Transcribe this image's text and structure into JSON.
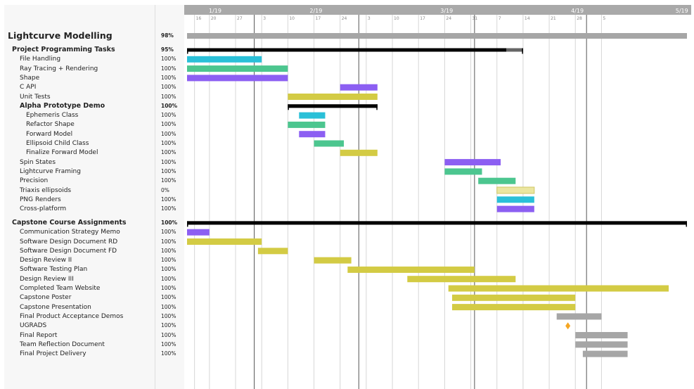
{
  "chart_data": {
    "type": "gantt",
    "timeline": {
      "start": "2019-01-14",
      "end": "2019-05-30",
      "month_labels": [
        {
          "label": "1/19",
          "date": "2019-01-14"
        },
        {
          "label": "2/19",
          "date": "2019-02-10"
        },
        {
          "label": "3/19",
          "date": "2019-03-17"
        },
        {
          "label": "4/19",
          "date": "2019-04-21"
        },
        {
          "label": "5/19",
          "date": "2019-05-19"
        }
      ],
      "day_ticks": [
        {
          "label": "16",
          "date": "2019-01-16"
        },
        {
          "label": "20",
          "date": "2019-01-20"
        },
        {
          "label": "27",
          "date": "2019-01-27"
        },
        {
          "label": "3",
          "date": "2019-02-03"
        },
        {
          "label": "10",
          "date": "2019-02-10"
        },
        {
          "label": "17",
          "date": "2019-02-17"
        },
        {
          "label": "24",
          "date": "2019-02-24"
        },
        {
          "label": "3",
          "date": "2019-03-03"
        },
        {
          "label": "10",
          "date": "2019-03-10"
        },
        {
          "label": "17",
          "date": "2019-03-17"
        },
        {
          "label": "24",
          "date": "2019-03-24"
        },
        {
          "label": "31",
          "date": "2019-03-31"
        },
        {
          "label": "7",
          "date": "2019-04-07"
        },
        {
          "label": "14",
          "date": "2019-04-14"
        },
        {
          "label": "21",
          "date": "2019-04-21"
        },
        {
          "label": "28",
          "date": "2019-04-28"
        },
        {
          "label": "5",
          "date": "2019-05-05"
        }
      ],
      "major_lines": [
        "2019-02-01",
        "2019-03-01",
        "2019-04-01",
        "2019-05-01"
      ]
    },
    "tasks": [
      {
        "name": "Lightcurve Modelling",
        "pct": "98%",
        "level": 0,
        "kind": "project",
        "start": "2019-01-14",
        "end": "2019-05-30",
        "color": "#a6a6a6"
      },
      {
        "name": "Project Programming Tasks",
        "pct": "95%",
        "level": 1,
        "kind": "group",
        "start": "2019-01-14",
        "end": "2019-04-14",
        "progress": 0.95
      },
      {
        "name": "File Handling",
        "pct": "100%",
        "level": 2,
        "kind": "task",
        "start": "2019-01-14",
        "end": "2019-02-03",
        "color": "#2ac0d8"
      },
      {
        "name": "Ray Tracing + Rendering",
        "pct": "100%",
        "level": 2,
        "kind": "task",
        "start": "2019-01-14",
        "end": "2019-02-10",
        "color": "#4cc68f"
      },
      {
        "name": "Shape",
        "pct": "100%",
        "level": 2,
        "kind": "task",
        "start": "2019-01-14",
        "end": "2019-02-10",
        "color": "#8c5ff2"
      },
      {
        "name": "C API",
        "pct": "100%",
        "level": 2,
        "kind": "task",
        "start": "2019-02-24",
        "end": "2019-03-06",
        "color": "#8c5ff2"
      },
      {
        "name": "Unit Tests",
        "pct": "100%",
        "level": 2,
        "kind": "task",
        "start": "2019-02-10",
        "end": "2019-03-06",
        "color": "#d3cb44"
      },
      {
        "name": "Alpha Prototype Demo",
        "pct": "100%",
        "level": 2,
        "kind": "group",
        "start": "2019-02-10",
        "end": "2019-03-06",
        "progress": 1
      },
      {
        "name": "Ephemeris Class",
        "pct": "100%",
        "level": 3,
        "kind": "task",
        "start": "2019-02-13",
        "end": "2019-02-20",
        "color": "#2ac0d8"
      },
      {
        "name": "Refactor Shape",
        "pct": "100%",
        "level": 3,
        "kind": "task",
        "start": "2019-02-10",
        "end": "2019-02-20",
        "color": "#4cc68f"
      },
      {
        "name": "Forward Model",
        "pct": "100%",
        "level": 3,
        "kind": "task",
        "start": "2019-02-13",
        "end": "2019-02-20",
        "color": "#8c5ff2"
      },
      {
        "name": "Ellipsoid Child Class",
        "pct": "100%",
        "level": 3,
        "kind": "task",
        "start": "2019-02-17",
        "end": "2019-02-25",
        "color": "#4cc68f"
      },
      {
        "name": "Finalize Forward Model",
        "pct": "100%",
        "level": 3,
        "kind": "task",
        "start": "2019-02-24",
        "end": "2019-03-06",
        "color": "#d3cb44"
      },
      {
        "name": "Spin States",
        "pct": "100%",
        "level": 2,
        "kind": "task",
        "start": "2019-03-24",
        "end": "2019-04-08",
        "color": "#8c5ff2"
      },
      {
        "name": "Lightcurve Framing",
        "pct": "100%",
        "level": 2,
        "kind": "task",
        "start": "2019-03-24",
        "end": "2019-04-03",
        "color": "#4cc68f"
      },
      {
        "name": "Precision",
        "pct": "100%",
        "level": 2,
        "kind": "task",
        "start": "2019-04-02",
        "end": "2019-04-12",
        "color": "#4cc68f"
      },
      {
        "name": "Triaxis ellipsoids",
        "pct": "0%",
        "level": 2,
        "kind": "task",
        "start": "2019-04-07",
        "end": "2019-04-17",
        "color": "#ebe6a0",
        "outline": "#cfc766"
      },
      {
        "name": "PNG Renders",
        "pct": "100%",
        "level": 2,
        "kind": "task",
        "start": "2019-04-07",
        "end": "2019-04-17",
        "color": "#2ac0d8"
      },
      {
        "name": "Cross-platform",
        "pct": "100%",
        "level": 2,
        "kind": "task",
        "start": "2019-04-07",
        "end": "2019-04-17",
        "color": "#8c5ff2"
      },
      {
        "name": "Capstone Course Assignments",
        "pct": "100%",
        "level": 1,
        "kind": "group",
        "start": "2019-01-14",
        "end": "2019-05-30",
        "progress": 1,
        "gap_before": true
      },
      {
        "name": "Communication Strategy Memo",
        "pct": "100%",
        "level": 2,
        "kind": "task",
        "start": "2019-01-14",
        "end": "2019-01-20",
        "color": "#8c5ff2"
      },
      {
        "name": "Software Design Document RD",
        "pct": "100%",
        "level": 2,
        "kind": "task",
        "start": "2019-01-14",
        "end": "2019-02-03",
        "color": "#d3cb44"
      },
      {
        "name": "Software Design Document FD",
        "pct": "100%",
        "level": 2,
        "kind": "task",
        "start": "2019-02-02",
        "end": "2019-02-10",
        "color": "#d3cb44"
      },
      {
        "name": "Design Review II",
        "pct": "100%",
        "level": 2,
        "kind": "task",
        "start": "2019-02-17",
        "end": "2019-02-27",
        "color": "#d3cb44"
      },
      {
        "name": "Software Testing Plan",
        "pct": "100%",
        "level": 2,
        "kind": "task",
        "start": "2019-02-26",
        "end": "2019-04-01",
        "color": "#d3cb44"
      },
      {
        "name": "Design Review III",
        "pct": "100%",
        "level": 2,
        "kind": "task",
        "start": "2019-03-14",
        "end": "2019-04-12",
        "color": "#d3cb44"
      },
      {
        "name": "Completed Team Website",
        "pct": "100%",
        "level": 2,
        "kind": "task",
        "start": "2019-03-25",
        "end": "2019-05-23",
        "color": "#d3cb44"
      },
      {
        "name": "Capstone Poster",
        "pct": "100%",
        "level": 2,
        "kind": "task",
        "start": "2019-03-26",
        "end": "2019-04-28",
        "color": "#d3cb44"
      },
      {
        "name": "Capstone Presentation",
        "pct": "100%",
        "level": 2,
        "kind": "task",
        "start": "2019-03-26",
        "end": "2019-04-28",
        "color": "#d3cb44"
      },
      {
        "name": "Final Product Acceptance Demos",
        "pct": "100%",
        "level": 2,
        "kind": "task",
        "start": "2019-04-23",
        "end": "2019-05-05",
        "color": "#a6a6a6"
      },
      {
        "name": "UGRADS",
        "pct": "100%",
        "level": 2,
        "kind": "milestone",
        "date": "2019-04-26",
        "color": "#f5a623"
      },
      {
        "name": "Final Report",
        "pct": "100%",
        "level": 2,
        "kind": "task",
        "start": "2019-04-28",
        "end": "2019-05-12",
        "color": "#a6a6a6"
      },
      {
        "name": "Team Reflection Document",
        "pct": "100%",
        "level": 2,
        "kind": "task",
        "start": "2019-04-28",
        "end": "2019-05-12",
        "color": "#a6a6a6"
      },
      {
        "name": "Final Project Delivery",
        "pct": "100%",
        "level": 2,
        "kind": "task",
        "start": "2019-04-30",
        "end": "2019-05-12",
        "color": "#a6a6a6"
      }
    ]
  }
}
